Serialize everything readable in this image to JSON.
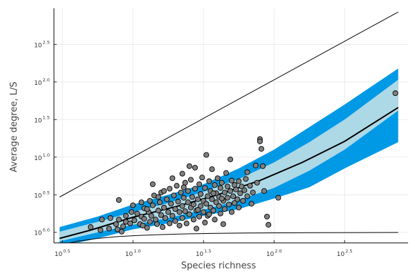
{
  "chart_data": {
    "type": "scatter",
    "title": "",
    "xlabel": "Species richness",
    "ylabel": "Average degree, L/S",
    "x_scale": "log10",
    "y_scale": "log10",
    "xlim": [
      0.44,
      2.95
    ],
    "ylim": [
      -0.14,
      2.98
    ],
    "x_ticks": [
      {
        "base": "10",
        "exp": "0.5",
        "value": 0.5
      },
      {
        "base": "10",
        "exp": "1.0",
        "value": 1.0
      },
      {
        "base": "10",
        "exp": "1.5",
        "value": 1.5
      },
      {
        "base": "10",
        "exp": "2.0",
        "value": 2.0
      },
      {
        "base": "10",
        "exp": "2.5",
        "value": 2.5
      }
    ],
    "y_ticks": [
      {
        "base": "10",
        "exp": "0.0",
        "value": 0.0
      },
      {
        "base": "10",
        "exp": "0.5",
        "value": 0.5
      },
      {
        "base": "10",
        "exp": "1.0",
        "value": 1.0
      },
      {
        "base": "10",
        "exp": "1.5",
        "value": 1.5
      },
      {
        "base": "10",
        "exp": "2.0",
        "value": 2.0
      },
      {
        "base": "10",
        "exp": "2.5",
        "value": 2.5
      }
    ],
    "grid": true,
    "colors": {
      "outer_band": "#0099e6",
      "inner_band": "#add8e6",
      "points_fill": "#808080",
      "points_stroke": "#000000",
      "lines": "#000000"
    },
    "bands": {
      "x": [
        0.48,
        0.75,
        1.0,
        1.25,
        1.5,
        1.75,
        2.0,
        2.25,
        2.5,
        2.88
      ],
      "outer_lower": [
        -0.19,
        -0.08,
        0.04,
        0.12,
        0.22,
        0.31,
        0.45,
        0.6,
        0.85,
        1.2
      ],
      "inner_lower": [
        -0.12,
        0.0,
        0.1,
        0.19,
        0.3,
        0.43,
        0.59,
        0.82,
        1.1,
        1.62
      ],
      "inner_upper": [
        0.01,
        0.14,
        0.27,
        0.39,
        0.54,
        0.71,
        0.93,
        1.2,
        1.5,
        2.03
      ],
      "outer_upper": [
        0.07,
        0.21,
        0.37,
        0.5,
        0.64,
        0.85,
        1.1,
        1.4,
        1.7,
        2.18
      ]
    },
    "series": [
      {
        "name": "",
        "type": "line",
        "x": [
          0.48,
          0.7,
          1.0,
          1.3,
          1.6,
          1.9,
          2.2,
          2.5,
          2.88
        ],
        "y": [
          -0.08,
          0.03,
          0.2,
          0.34,
          0.5,
          0.69,
          0.93,
          1.21,
          1.66
        ]
      },
      {
        "name": "",
        "type": "line",
        "x": [
          0.48,
          2.88
        ],
        "y": [
          0.47,
          2.93
        ]
      },
      {
        "name": "",
        "type": "line",
        "x": [
          0.48,
          0.6,
          0.75,
          0.9,
          1.05,
          1.2,
          1.4,
          1.6,
          1.8,
          2.0,
          2.25,
          2.5,
          2.88
        ],
        "y": [
          -0.17,
          -0.12,
          -0.08,
          -0.055,
          -0.04,
          -0.03,
          -0.02,
          -0.014,
          -0.01,
          -0.007,
          -0.005,
          -0.003,
          -0.001
        ]
      },
      {
        "name": "",
        "type": "scatter",
        "points": [
          [
            0.7,
            0.07
          ],
          [
            0.77,
            0.03
          ],
          [
            0.78,
            0.17
          ],
          [
            0.83,
            0.05
          ],
          [
            0.84,
            0.19
          ],
          [
            0.88,
            0.11
          ],
          [
            0.89,
            0.04
          ],
          [
            0.9,
            0.43
          ],
          [
            0.9,
            0.17
          ],
          [
            0.92,
            0.01
          ],
          [
            0.93,
            0.08
          ],
          [
            0.95,
            0.22
          ],
          [
            0.95,
            0.14
          ],
          [
            0.98,
            0.12
          ],
          [
            0.99,
            0.27
          ],
          [
            1.0,
            0.36
          ],
          [
            1.01,
            0.16
          ],
          [
            1.03,
            0.25
          ],
          [
            1.05,
            0.11
          ],
          [
            1.06,
            0.21
          ],
          [
            1.07,
            0.09
          ],
          [
            1.08,
            0.32
          ],
          [
            1.08,
            0.18
          ],
          [
            1.1,
            0.06
          ],
          [
            1.11,
            0.27
          ],
          [
            1.12,
            0.14
          ],
          [
            1.12,
            0.42
          ],
          [
            1.13,
            0.22
          ],
          [
            1.14,
            0.64
          ],
          [
            1.14,
            0.36
          ],
          [
            1.15,
            0.49
          ],
          [
            1.16,
            0.17
          ],
          [
            1.17,
            0.11
          ],
          [
            1.18,
            0.29
          ],
          [
            1.19,
            0.4
          ],
          [
            1.2,
            0.23
          ],
          [
            1.2,
            0.53
          ],
          [
            1.21,
            0.07
          ],
          [
            1.22,
            0.33
          ],
          [
            1.23,
            0.19
          ],
          [
            1.24,
            0.44
          ],
          [
            1.25,
            0.27
          ],
          [
            1.26,
            0.58
          ],
          [
            1.26,
            0.12
          ],
          [
            1.27,
            0.38
          ],
          [
            1.28,
            0.22
          ],
          [
            1.29,
            0.49
          ],
          [
            1.3,
            0.31
          ],
          [
            1.3,
            0.15
          ],
          [
            1.31,
            0.62
          ],
          [
            1.32,
            0.41
          ],
          [
            1.33,
            0.27
          ],
          [
            1.33,
            0.09
          ],
          [
            1.34,
            0.53
          ],
          [
            1.35,
            0.35
          ],
          [
            1.35,
            0.19
          ],
          [
            1.36,
            0.46
          ],
          [
            1.37,
            0.66
          ],
          [
            1.37,
            0.28
          ],
          [
            1.38,
            0.12
          ],
          [
            1.39,
            0.4
          ],
          [
            1.39,
            0.55
          ],
          [
            1.4,
            0.24
          ],
          [
            1.41,
            0.33
          ],
          [
            1.41,
            0.7
          ],
          [
            1.42,
            0.47
          ],
          [
            1.43,
            0.17
          ],
          [
            1.43,
            0.37
          ],
          [
            1.44,
            0.58
          ],
          [
            1.45,
            0.29
          ],
          [
            1.45,
            0.05
          ],
          [
            1.46,
            0.44
          ],
          [
            1.47,
            0.64
          ],
          [
            1.47,
            0.21
          ],
          [
            1.48,
            0.35
          ],
          [
            1.48,
            0.51
          ],
          [
            1.49,
            0.73
          ],
          [
            1.5,
            0.27
          ],
          [
            1.5,
            0.42
          ],
          [
            1.51,
            0.13
          ],
          [
            1.51,
            0.59
          ],
          [
            1.52,
            0.38
          ],
          [
            1.53,
            0.48
          ],
          [
            1.53,
            0.22
          ],
          [
            1.54,
            0.68
          ],
          [
            1.55,
            0.33
          ],
          [
            1.55,
            0.55
          ],
          [
            1.56,
            0.84
          ],
          [
            1.56,
            0.44
          ],
          [
            1.57,
            0.29
          ],
          [
            1.58,
            0.63
          ],
          [
            1.58,
            0.17
          ],
          [
            1.59,
            0.4
          ],
          [
            1.59,
            0.52
          ],
          [
            1.6,
            0.72
          ],
          [
            1.61,
            0.35
          ],
          [
            1.61,
            0.47
          ],
          [
            1.62,
            0.59
          ],
          [
            1.62,
            0.25
          ],
          [
            1.63,
            0.66
          ],
          [
            1.64,
            0.42
          ],
          [
            1.64,
            0.11
          ],
          [
            1.65,
            0.53
          ],
          [
            1.65,
            0.31
          ],
          [
            1.66,
            0.79
          ],
          [
            1.67,
            0.46
          ],
          [
            1.67,
            0.61
          ],
          [
            1.68,
            0.37
          ],
          [
            1.69,
            0.55
          ],
          [
            1.7,
            0.69
          ],
          [
            1.7,
            0.27
          ],
          [
            1.71,
            0.48
          ],
          [
            1.72,
            0.63
          ],
          [
            1.72,
            0.39
          ],
          [
            1.73,
            0.57
          ],
          [
            1.74,
            0.44
          ],
          [
            1.75,
            0.68
          ],
          [
            1.75,
            0.33
          ],
          [
            1.76,
            0.52
          ],
          [
            1.77,
            0.61
          ],
          [
            1.78,
            0.42
          ],
          [
            1.79,
            0.56
          ],
          [
            1.8,
            0.71
          ],
          [
            1.81,
            0.48
          ],
          [
            1.83,
            0.62
          ],
          [
            1.84,
            0.38
          ],
          [
            1.85,
            0.53
          ],
          [
            1.87,
            0.89
          ],
          [
            1.88,
            0.66
          ],
          [
            1.9,
            1.24
          ],
          [
            1.9,
            1.21
          ],
          [
            1.91,
            1.11
          ],
          [
            1.92,
            0.88
          ],
          [
            1.93,
            0.55
          ],
          [
            1.95,
            0.21
          ],
          [
            1.96,
            0.1
          ],
          [
            2.03,
            0.46
          ],
          [
            1.28,
            0.72
          ],
          [
            1.35,
            0.78
          ],
          [
            1.44,
            0.86
          ],
          [
            1.52,
            1.03
          ],
          [
            1.69,
            0.97
          ],
          [
            1.81,
            0.8
          ],
          [
            1.4,
            0.88
          ],
          [
            1.22,
            0.55
          ],
          [
            1.18,
            0.47
          ],
          [
            1.06,
            0.4
          ],
          [
            1.1,
            0.31
          ],
          [
            1.57,
            0.52
          ],
          [
            1.63,
            0.45
          ],
          [
            1.46,
            0.3
          ],
          [
            1.54,
            0.24
          ],
          [
            1.36,
            0.6
          ],
          [
            2.86,
            1.85
          ]
        ]
      }
    ]
  }
}
